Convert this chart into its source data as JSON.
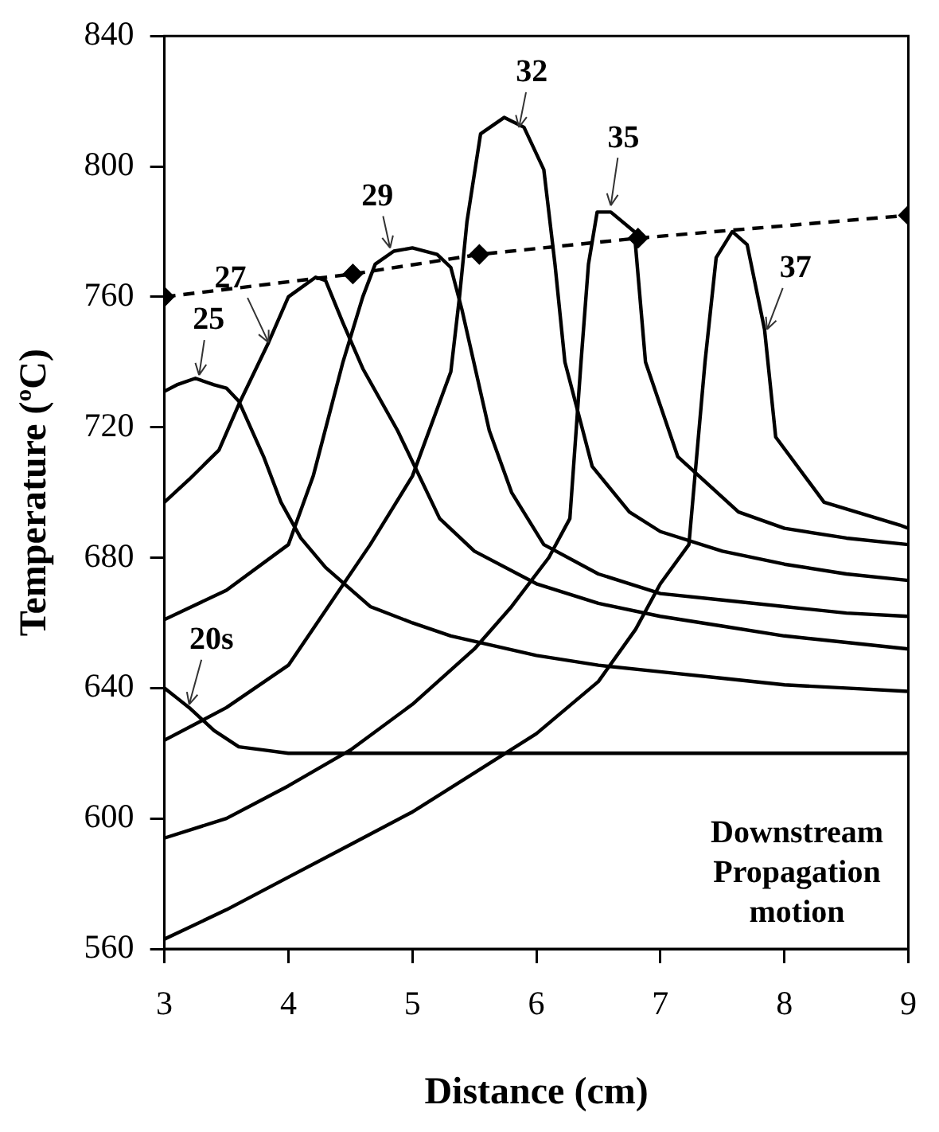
{
  "chart_data": {
    "type": "line",
    "xlabel": "Distance (cm)",
    "ylabel": "Temperature (ºC)",
    "xlim": [
      3,
      9
    ],
    "xticks": [
      3,
      4,
      5,
      6,
      7,
      8,
      9
    ],
    "ylim": [
      560,
      840
    ],
    "yticks": [
      560,
      600,
      640,
      680,
      720,
      760,
      800,
      840
    ],
    "grid": false,
    "legend": false,
    "marker": "none",
    "line_style": "solid",
    "series": [
      {
        "color": "#000000",
        "x": [
          3,
          3.1,
          3.2,
          3.4,
          3.6,
          3.8,
          4,
          4.5,
          5,
          5.5,
          6,
          6.5,
          7,
          7.5,
          8,
          8.5,
          9
        ],
        "values": [
          640,
          637,
          634,
          627,
          622,
          621,
          620,
          620,
          620,
          620,
          620,
          620,
          620,
          620,
          620,
          620,
          620
        ]
      },
      {
        "color": "#000000",
        "x": [
          3,
          3.1,
          3.25,
          3.4,
          3.5,
          3.6,
          3.8,
          3.94,
          4.1,
          4.3,
          4.66,
          5,
          5.31,
          6,
          6.5,
          7,
          7.5,
          8,
          8.5,
          9
        ],
        "values": [
          731,
          733,
          735,
          733,
          732,
          728,
          711,
          697,
          686,
          677,
          665,
          660,
          656,
          650,
          647,
          645,
          643,
          641,
          640,
          639
        ]
      },
      {
        "color": "#000000",
        "x": [
          3,
          3.2,
          3.44,
          3.6,
          3.84,
          4,
          4.22,
          4.3,
          4.44,
          4.6,
          4.88,
          5.22,
          5.5,
          6,
          6.5,
          7,
          7.5,
          8,
          8.5,
          9
        ],
        "values": [
          697,
          704,
          713,
          727,
          746,
          760,
          766,
          765,
          752,
          738,
          719,
          692,
          682,
          672,
          666,
          662,
          659,
          656,
          654,
          652
        ]
      },
      {
        "color": "#000000",
        "x": [
          3,
          3.5,
          4,
          4.2,
          4.44,
          4.6,
          4.7,
          4.85,
          5,
          5.2,
          5.31,
          5.4,
          5.62,
          5.8,
          6.06,
          6.5,
          7,
          7.5,
          8,
          8.5,
          9
        ],
        "values": [
          661,
          670,
          684,
          705,
          740,
          760,
          770,
          774,
          775,
          773,
          769,
          756,
          719,
          700,
          684,
          675,
          669,
          667,
          665,
          663,
          662
        ]
      },
      {
        "color": "#000000",
        "x": [
          3,
          3.5,
          4,
          4.66,
          5,
          5.31,
          5.38,
          5.44,
          5.55,
          5.74,
          5.9,
          6.06,
          6.15,
          6.23,
          6.45,
          6.75,
          7,
          7.5,
          8,
          8.5,
          9
        ],
        "values": [
          624,
          634,
          647,
          684,
          705,
          737,
          760,
          783,
          810,
          815,
          812,
          799,
          770,
          740,
          708,
          694,
          688,
          682,
          678,
          675,
          673
        ]
      },
      {
        "color": "#000000",
        "x": [
          3,
          3.5,
          4,
          4.5,
          5,
          5.5,
          5.8,
          6.1,
          6.27,
          6.36,
          6.42,
          6.49,
          6.6,
          6.79,
          6.88,
          7.14,
          7.63,
          8,
          8.5,
          9
        ],
        "values": [
          594,
          600,
          610,
          621,
          635,
          652,
          665,
          680,
          692,
          740,
          770,
          786,
          786,
          780,
          740,
          711,
          694,
          689,
          686,
          684
        ]
      },
      {
        "color": "#000000",
        "x": [
          3,
          3.5,
          4,
          4.5,
          5,
          5.5,
          6,
          6.5,
          6.8,
          7.0,
          7.23,
          7.36,
          7.45,
          7.58,
          7.7,
          7.84,
          7.93,
          8.32,
          8.93,
          9
        ],
        "values": [
          563,
          572,
          582,
          592,
          602,
          614,
          626,
          642,
          658,
          672,
          684,
          740,
          772,
          780,
          776,
          750,
          717,
          697,
          690,
          689
        ]
      },
      {
        "color": "#000000",
        "marker": "diamond",
        "line_style": "dashed",
        "x": [
          3,
          4.52,
          5.54,
          6.82,
          9
        ],
        "values": [
          760,
          767,
          773,
          778,
          785
        ]
      }
    ],
    "annotations": [
      {
        "text": "20s",
        "x": 3.2,
        "y": 635
      },
      {
        "text": "25",
        "x": 3.28,
        "y": 736
      },
      {
        "text": "27",
        "x": 3.84,
        "y": 746
      },
      {
        "text": "29",
        "x": 4.82,
        "y": 775
      },
      {
        "text": "32",
        "x": 5.86,
        "y": 812
      },
      {
        "text": "35",
        "x": 6.6,
        "y": 788
      },
      {
        "text": "37",
        "x": 7.86,
        "y": 750
      },
      "Downstream\nPropagation\nmotion"
    ]
  }
}
